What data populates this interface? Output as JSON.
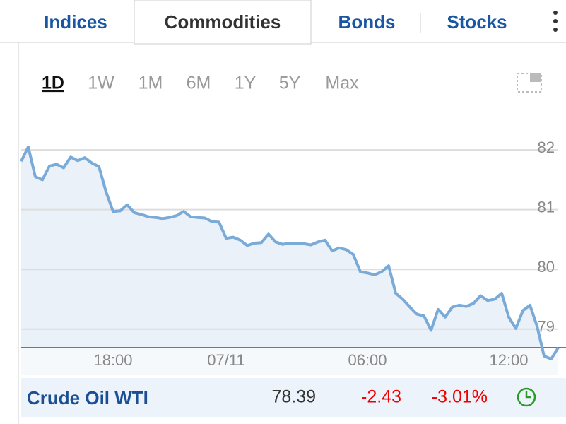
{
  "tabs": [
    {
      "label": "Indices"
    },
    {
      "label": "Commodities",
      "active": true
    },
    {
      "label": "Bonds"
    },
    {
      "label": "Stocks"
    }
  ],
  "ranges": [
    {
      "label": "1D",
      "selected": true
    },
    {
      "label": "1W"
    },
    {
      "label": "1M"
    },
    {
      "label": "6M"
    },
    {
      "label": "1Y"
    },
    {
      "label": "5Y"
    },
    {
      "label": "Max"
    }
  ],
  "chart_data": {
    "type": "line",
    "color": "#7aaad8",
    "area_color": "#eaf1f9",
    "grid": true,
    "categories": [
      null,
      null,
      null,
      null,
      null,
      null,
      null,
      null,
      null,
      null,
      null,
      null,
      null,
      "18:00",
      null,
      null,
      null,
      null,
      null,
      null,
      null,
      null,
      null,
      null,
      null,
      null,
      null,
      null,
      null,
      "07/11",
      null,
      null,
      null,
      null,
      null,
      null,
      null,
      null,
      null,
      null,
      null,
      null,
      null,
      null,
      null,
      null,
      null,
      null,
      null,
      "06:00",
      null,
      null,
      null,
      null,
      null,
      null,
      null,
      null,
      null,
      null,
      null,
      null,
      null,
      null,
      null,
      null,
      null,
      null,
      null,
      "12:00",
      null,
      null,
      null,
      null,
      null,
      null,
      null
    ],
    "values": [
      81.81,
      82.05,
      81.55,
      81.5,
      81.73,
      81.76,
      81.7,
      81.88,
      81.82,
      81.87,
      81.78,
      81.72,
      81.3,
      80.97,
      80.98,
      81.08,
      80.95,
      80.92,
      80.88,
      80.87,
      80.85,
      80.87,
      80.9,
      80.97,
      80.88,
      80.87,
      80.86,
      80.8,
      80.79,
      80.52,
      80.54,
      80.49,
      80.4,
      80.44,
      80.45,
      80.59,
      80.46,
      80.42,
      80.44,
      80.43,
      80.43,
      80.41,
      80.46,
      80.49,
      80.31,
      80.36,
      80.33,
      80.25,
      79.96,
      79.94,
      79.91,
      79.96,
      80.06,
      79.6,
      79.5,
      79.37,
      79.25,
      79.22,
      78.98,
      79.33,
      79.2,
      79.37,
      79.4,
      79.38,
      79.43,
      79.56,
      79.48,
      79.5,
      79.6,
      79.2,
      79.01,
      79.31,
      79.4,
      79.05,
      78.55,
      78.5,
      78.69
    ],
    "ylim": [
      78.24,
      82.38
    ],
    "yticks": [
      79,
      80,
      81,
      82
    ]
  },
  "quote": {
    "name": "Crude Oil WTI",
    "price": 78.39,
    "change": -2.43,
    "change_pct": "-3.01%"
  }
}
